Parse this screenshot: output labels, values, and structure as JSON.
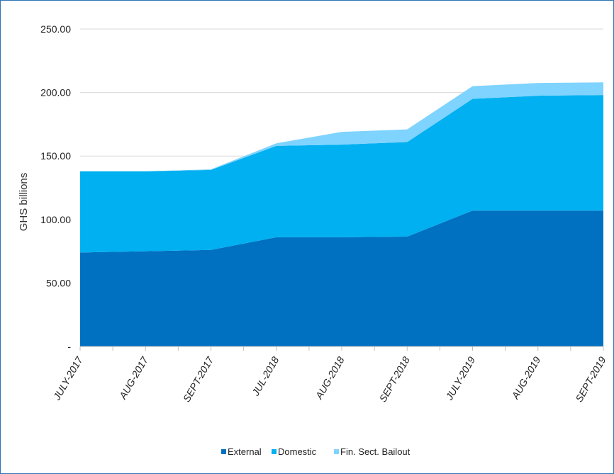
{
  "chart_data": {
    "type": "area",
    "stacked": true,
    "ylabel": "GHS billions",
    "xlabel": "",
    "title": "",
    "ylim": [
      0,
      250
    ],
    "yticks": [
      0,
      50,
      100,
      150,
      200,
      250
    ],
    "ytick_labels": [
      "-",
      "50.00",
      "100.00",
      "150.00",
      "200.00",
      "250.00"
    ],
    "categories": [
      "JULY-2017",
      "AUG-2017",
      "SEPT-2017",
      "JUL-2018",
      "AUG-2018",
      "SEPT-2018",
      "JULY-2019",
      "AUG-2019",
      "SEPT-2019"
    ],
    "series": [
      {
        "name": "External",
        "color": "#0070c0",
        "values": [
          74,
          75,
          76,
          86,
          86,
          86.5,
          107,
          107,
          107
        ]
      },
      {
        "name": "Domestic",
        "color": "#00b0f0",
        "values": [
          64,
          63,
          63,
          72,
          73,
          74.5,
          88,
          90.5,
          91
        ]
      },
      {
        "name": "Fin. Sect. Bailout",
        "color": "#7fd3ff",
        "values": [
          0,
          0,
          0.5,
          2,
          10,
          10,
          10,
          10,
          10
        ]
      }
    ],
    "grid": true,
    "legend_position": "bottom"
  },
  "colors": {
    "border": "#2e75b6",
    "gridline": "#d9d9d9",
    "axis": "#bfbfbf"
  }
}
